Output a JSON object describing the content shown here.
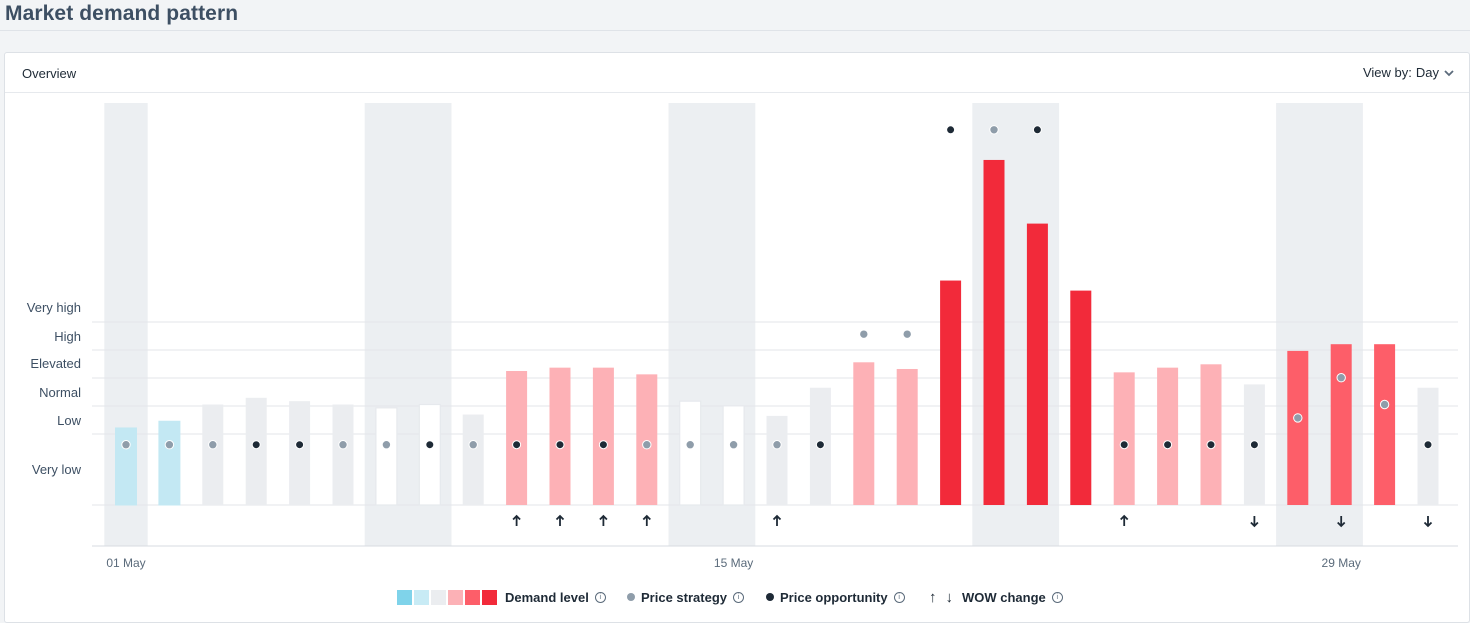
{
  "page": {
    "title": "Market demand pattern"
  },
  "card": {
    "title": "Overview",
    "view_by_label": "View by:",
    "view_by_value": "Day"
  },
  "legend": {
    "demand_label": "Demand level",
    "strategy_label": "Price strategy",
    "opportunity_label": "Price opportunity",
    "wow_label": "WOW change",
    "demand_swatches": [
      "#7fd3ea",
      "#c8ebf5",
      "#ebedf0",
      "#fcb1b6",
      "#fd5e69",
      "#f22a3a"
    ]
  },
  "colors": {
    "very_low": "#c3e8f3",
    "low": "#ebedf0",
    "normal_outline": "#f6f7f8",
    "elevated": "#fdb1b6",
    "high": "#fd5e69",
    "very_high": "#f22a3a",
    "strategy_dot": "#8f9daa",
    "opportunity_dot": "#1e2a36",
    "weekend_band": "#eceff2"
  },
  "chart_data": {
    "type": "bar",
    "title": "Market demand pattern",
    "y_levels": [
      "Very low",
      "Low",
      "Normal",
      "Elevated",
      "High",
      "Very high"
    ],
    "x_tick_labels": [
      {
        "day": 1,
        "label": "01 May"
      },
      {
        "day": 15,
        "label": "15 May"
      },
      {
        "day": 29,
        "label": "29 May"
      }
    ],
    "weekend_bands": [
      [
        1,
        1
      ],
      [
        7,
        8
      ],
      [
        14,
        15
      ],
      [
        21,
        22
      ],
      [
        28,
        29
      ]
    ],
    "days": [
      1,
      2,
      3,
      4,
      5,
      6,
      7,
      8,
      9,
      10,
      11,
      12,
      13,
      14,
      15,
      16,
      17,
      18,
      19,
      20,
      21,
      22,
      23,
      24,
      25,
      26,
      27,
      28,
      29,
      30,
      31
    ],
    "demand_values": [
      1.15,
      1.25,
      1.5,
      1.6,
      1.55,
      1.5,
      1.45,
      1.5,
      1.35,
      2.0,
      2.05,
      2.05,
      1.95,
      1.55,
      1.48,
      1.33,
      1.75,
      2.13,
      2.03,
      3.35,
      5.15,
      4.2,
      3.2,
      1.98,
      2.05,
      2.1,
      1.8,
      2.3,
      2.4,
      2.4,
      1.75
    ],
    "demand_category": [
      "very_low",
      "very_low",
      "low",
      "low",
      "low",
      "low",
      "normal",
      "normal",
      "low",
      "elevated",
      "elevated",
      "elevated",
      "elevated",
      "normal",
      "normal",
      "low",
      "low",
      "elevated",
      "elevated",
      "very_high",
      "very_high",
      "very_high",
      "very_high",
      "elevated",
      "elevated",
      "elevated",
      "low",
      "high",
      "high",
      "high",
      "low"
    ],
    "price_strategy": [
      0.9,
      0.9,
      0.9,
      null,
      null,
      0.9,
      0.9,
      null,
      0.9,
      null,
      null,
      null,
      0.9,
      0.9,
      0.9,
      0.9,
      null,
      2.55,
      2.55,
      null,
      5.6,
      null,
      null,
      null,
      null,
      null,
      null,
      1.3,
      1.9,
      1.5,
      null
    ],
    "price_opportunity": [
      null,
      null,
      null,
      0.9,
      0.9,
      null,
      null,
      0.9,
      null,
      0.9,
      0.9,
      0.9,
      null,
      null,
      null,
      null,
      0.9,
      null,
      null,
      5.6,
      null,
      5.6,
      null,
      0.9,
      0.9,
      0.9,
      0.9,
      null,
      null,
      null,
      0.9
    ],
    "wow_change": [
      null,
      null,
      null,
      null,
      null,
      null,
      null,
      null,
      null,
      "up",
      "up",
      "up",
      "up",
      null,
      null,
      "up",
      null,
      null,
      null,
      null,
      null,
      null,
      null,
      "up",
      null,
      null,
      "down",
      null,
      "down",
      null,
      "down"
    ],
    "ylim": [
      0,
      6
    ]
  }
}
